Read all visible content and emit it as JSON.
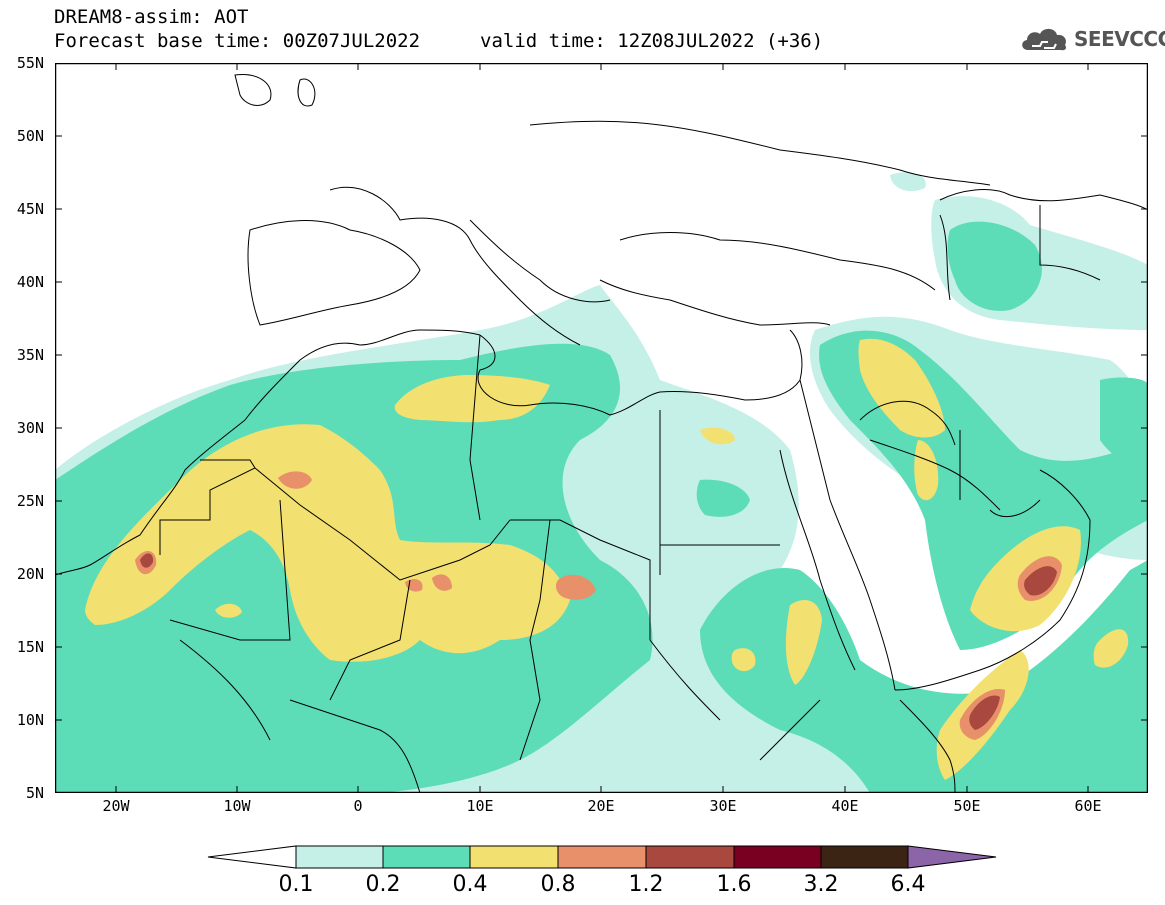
{
  "header": {
    "line1": "DREAM8-assim: AOT",
    "line2": "Forecast base time: 00Z07JUL2022",
    "valid": "valid time: 12Z08JUL2022 (+36)"
  },
  "logo": {
    "text": "SEEVCCC",
    "icon": "cloud-icon"
  },
  "axes": {
    "lat_labels": [
      "55N",
      "50N",
      "45N",
      "40N",
      "35N",
      "30N",
      "25N",
      "20N",
      "15N",
      "10N",
      "5N"
    ],
    "lon_labels": [
      "20W",
      "10W",
      "0",
      "10E",
      "20E",
      "30E",
      "40E",
      "50E",
      "60E"
    ],
    "lat_range": [
      5,
      55
    ],
    "lon_range": [
      -25,
      65
    ]
  },
  "colorbar": {
    "labels": [
      "0.1",
      "0.2",
      "0.4",
      "0.8",
      "1.2",
      "1.6",
      "3.2",
      "6.4"
    ],
    "colors": [
      "#ffffff",
      "#c4f0e8",
      "#5ddcb8",
      "#f2e070",
      "#e8906a",
      "#a8483e",
      "#7a0022",
      "#3c2414",
      "#8c64a8"
    ]
  }
}
